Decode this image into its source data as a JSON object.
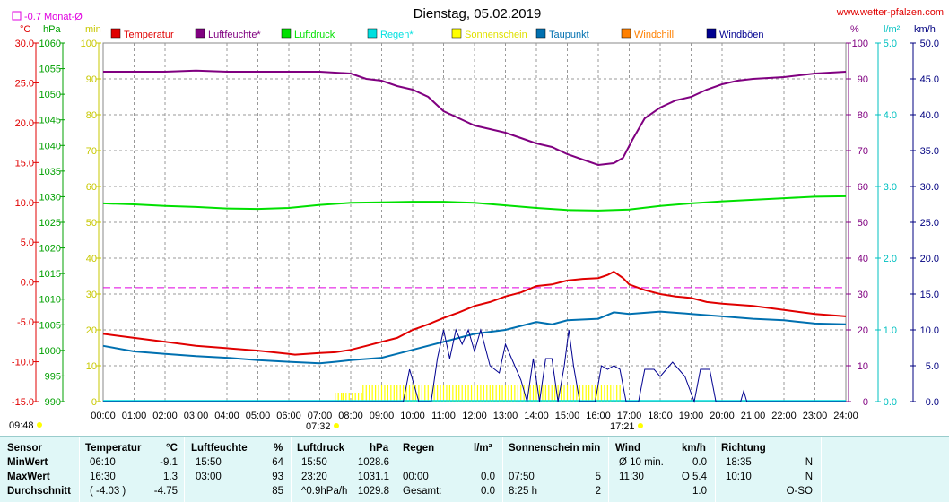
{
  "header": {
    "title": "Dienstag, 05.02.2019",
    "site": "www.wetter-pfalzen.com",
    "monthly_avg_label": "-0.7 Monat-Ø"
  },
  "axis_units": {
    "temp": "°C",
    "pressure": "hPa",
    "sunshine": "min",
    "humidity": "%",
    "rain": "l/m²",
    "wind": "km/h"
  },
  "legend": [
    {
      "label": "Temperatur",
      "color": "#e00000"
    },
    {
      "label": "Luftfeuchte*",
      "color": "#800080"
    },
    {
      "label": "Luftdruck",
      "color": "#00e000"
    },
    {
      "label": "Regen*",
      "color": "#00e0e0"
    },
    {
      "label": "Sonnenschein",
      "color": "#ffff00"
    },
    {
      "label": "Taupunkt",
      "color": "#0070b0"
    },
    {
      "label": "Windchill",
      "color": "#ff8000"
    },
    {
      "label": "Windböen",
      "color": "#000090"
    }
  ],
  "chart_data": {
    "type": "line",
    "x_ticks": [
      "00:00",
      "01:00",
      "02:00",
      "03:00",
      "04:00",
      "05:00",
      "06:00",
      "07:00",
      "08:00",
      "09:00",
      "10:00",
      "11:00",
      "12:00",
      "13:00",
      "14:00",
      "15:00",
      "16:00",
      "17:00",
      "18:00",
      "19:00",
      "20:00",
      "21:00",
      "22:00",
      "23:00",
      "24:00"
    ],
    "axes": {
      "temp": {
        "ticks": [
          "30.0",
          "25.0",
          "20.0",
          "15.0",
          "10.0",
          "5.0",
          "0.0",
          "-5.0",
          "-10.0",
          "-15.0"
        ],
        "range": [
          -15,
          30
        ],
        "color": "#e00000"
      },
      "pressure": {
        "ticks": [
          "1060",
          "1055",
          "1050",
          "1045",
          "1040",
          "1035",
          "1030",
          "1025",
          "1020",
          "1015",
          "1010",
          "1005",
          "1000",
          "995",
          "990"
        ],
        "range": [
          990,
          1060
        ],
        "color": "#00a000"
      },
      "sunshine": {
        "ticks": [
          "100",
          "90",
          "80",
          "70",
          "60",
          "50",
          "40",
          "30",
          "20",
          "10",
          "0"
        ],
        "range": [
          0,
          100
        ],
        "color": "#c8c800"
      },
      "humidity": {
        "ticks": [
          "100",
          "90",
          "80",
          "70",
          "60",
          "50",
          "40",
          "30",
          "20",
          "10",
          "0"
        ],
        "range": [
          0,
          100
        ],
        "color": "#800080"
      },
      "rain": {
        "ticks": [
          "5.0",
          "4.0",
          "3.0",
          "2.0",
          "1.0",
          "0.0"
        ],
        "range": [
          0,
          5
        ],
        "color": "#00c0c0"
      },
      "wind": {
        "ticks": [
          "50.0",
          "45.0",
          "40.0",
          "35.0",
          "30.0",
          "25.0",
          "20.0",
          "15.0",
          "10.0",
          "5.0",
          "0.0"
        ],
        "range": [
          0,
          50
        ],
        "color": "#000080"
      }
    },
    "monthly_avg_temp": -0.7,
    "sunrise": "07:32",
    "sunset": "17:21",
    "daylength": "09:48",
    "series": [
      {
        "name": "Luftfeuchte*",
        "axis": "humidity",
        "color": "#800080",
        "points": [
          [
            0,
            92
          ],
          [
            1,
            92
          ],
          [
            2,
            92
          ],
          [
            3,
            92.3
          ],
          [
            4,
            92
          ],
          [
            5,
            92
          ],
          [
            6,
            92
          ],
          [
            7,
            92
          ],
          [
            8,
            91.5
          ],
          [
            8.5,
            90
          ],
          [
            9,
            89.5
          ],
          [
            9.5,
            88
          ],
          [
            10,
            87
          ],
          [
            10.5,
            85
          ],
          [
            11,
            81
          ],
          [
            11.5,
            79
          ],
          [
            12,
            77
          ],
          [
            12.5,
            76
          ],
          [
            13,
            75
          ],
          [
            13.5,
            73.5
          ],
          [
            14,
            72
          ],
          [
            14.5,
            71
          ],
          [
            15,
            69
          ],
          [
            15.5,
            67.5
          ],
          [
            16,
            66
          ],
          [
            16.5,
            66.5
          ],
          [
            16.8,
            68
          ],
          [
            17.1,
            73
          ],
          [
            17.5,
            79
          ],
          [
            18,
            82
          ],
          [
            18.5,
            84
          ],
          [
            19,
            85
          ],
          [
            19.5,
            87
          ],
          [
            20,
            88.5
          ],
          [
            20.5,
            89.5
          ],
          [
            21,
            90
          ],
          [
            22,
            90.5
          ],
          [
            23,
            91.5
          ],
          [
            24,
            92
          ]
        ]
      },
      {
        "name": "Luftdruck",
        "axis": "pressure",
        "color": "#00e000",
        "points": [
          [
            0,
            1028.7
          ],
          [
            1,
            1028.5
          ],
          [
            2,
            1028.2
          ],
          [
            3,
            1028
          ],
          [
            4,
            1027.7
          ],
          [
            5,
            1027.6
          ],
          [
            6,
            1027.8
          ],
          [
            7,
            1028.4
          ],
          [
            8,
            1028.8
          ],
          [
            9,
            1028.9
          ],
          [
            10,
            1029
          ],
          [
            11,
            1029
          ],
          [
            12,
            1028.8
          ],
          [
            13,
            1028.3
          ],
          [
            14,
            1027.8
          ],
          [
            15,
            1027.4
          ],
          [
            16,
            1027.3
          ],
          [
            17,
            1027.5
          ],
          [
            18,
            1028.2
          ],
          [
            19,
            1028.7
          ],
          [
            20,
            1029.1
          ],
          [
            21,
            1029.4
          ],
          [
            22,
            1029.7
          ],
          [
            23,
            1030
          ],
          [
            24,
            1030.1
          ]
        ]
      },
      {
        "name": "Temperatur",
        "axis": "temp",
        "color": "#e00000",
        "points": [
          [
            0,
            -6.5
          ],
          [
            1,
            -7
          ],
          [
            2,
            -7.5
          ],
          [
            3,
            -8
          ],
          [
            4,
            -8.3
          ],
          [
            5,
            -8.6
          ],
          [
            6,
            -9
          ],
          [
            6.2,
            -9.1
          ],
          [
            7,
            -8.9
          ],
          [
            7.5,
            -8.8
          ],
          [
            8,
            -8.5
          ],
          [
            8.5,
            -8
          ],
          [
            9,
            -7.5
          ],
          [
            9.5,
            -7
          ],
          [
            10,
            -6
          ],
          [
            10.5,
            -5.3
          ],
          [
            11,
            -4.5
          ],
          [
            11.5,
            -3.8
          ],
          [
            12,
            -3
          ],
          [
            12.5,
            -2.5
          ],
          [
            13,
            -1.8
          ],
          [
            13.5,
            -1.3
          ],
          [
            14,
            -0.5
          ],
          [
            14.5,
            -0.3
          ],
          [
            15,
            0.2
          ],
          [
            15.5,
            0.4
          ],
          [
            16,
            0.5
          ],
          [
            16.3,
            0.9
          ],
          [
            16.5,
            1.3
          ],
          [
            16.8,
            0.5
          ],
          [
            17,
            -0.3
          ],
          [
            17.5,
            -1
          ],
          [
            18,
            -1.5
          ],
          [
            18.5,
            -1.8
          ],
          [
            19,
            -2
          ],
          [
            19.5,
            -2.5
          ],
          [
            20,
            -2.7
          ],
          [
            21,
            -3
          ],
          [
            22,
            -3.5
          ],
          [
            23,
            -4
          ],
          [
            24,
            -4.3
          ]
        ]
      },
      {
        "name": "Taupunkt",
        "axis": "temp",
        "color": "#0070b0",
        "points": [
          [
            0,
            -8
          ],
          [
            1,
            -8.7
          ],
          [
            2,
            -9
          ],
          [
            3,
            -9.3
          ],
          [
            4,
            -9.5
          ],
          [
            5,
            -9.8
          ],
          [
            6,
            -10
          ],
          [
            7,
            -10.2
          ],
          [
            7.5,
            -10
          ],
          [
            8,
            -9.8
          ],
          [
            9,
            -9.5
          ],
          [
            9.5,
            -9
          ],
          [
            10,
            -8.5
          ],
          [
            11,
            -7.5
          ],
          [
            12,
            -6.5
          ],
          [
            13,
            -6
          ],
          [
            14,
            -5
          ],
          [
            14.5,
            -5.3
          ],
          [
            15,
            -4.8
          ],
          [
            16,
            -4.6
          ],
          [
            16.5,
            -3.8
          ],
          [
            17,
            -4
          ],
          [
            18,
            -3.7
          ],
          [
            19,
            -4
          ],
          [
            20,
            -4.3
          ],
          [
            21,
            -4.6
          ],
          [
            22,
            -4.8
          ],
          [
            23,
            -5.2
          ],
          [
            24,
            -5.3
          ]
        ]
      },
      {
        "name": "Windböen",
        "axis": "wind",
        "color": "#000090",
        "points": [
          [
            0,
            0
          ],
          [
            9.7,
            0
          ],
          [
            9.9,
            4.5
          ],
          [
            10.2,
            0
          ],
          [
            10.6,
            0
          ],
          [
            10.8,
            6
          ],
          [
            11,
            10
          ],
          [
            11.2,
            6
          ],
          [
            11.4,
            10
          ],
          [
            11.6,
            8
          ],
          [
            11.8,
            10
          ],
          [
            12,
            7
          ],
          [
            12.2,
            10
          ],
          [
            12.5,
            5
          ],
          [
            12.8,
            4
          ],
          [
            13,
            8
          ],
          [
            13.2,
            6
          ],
          [
            13.5,
            3
          ],
          [
            13.7,
            0
          ],
          [
            13.9,
            6
          ],
          [
            14.1,
            0
          ],
          [
            14.3,
            6
          ],
          [
            14.5,
            6
          ],
          [
            14.7,
            0
          ],
          [
            14.9,
            5
          ],
          [
            15.05,
            10
          ],
          [
            15.2,
            5
          ],
          [
            15.4,
            0
          ],
          [
            15.9,
            0
          ],
          [
            16.1,
            5
          ],
          [
            16.3,
            4.5
          ],
          [
            16.5,
            5
          ],
          [
            16.7,
            4.5
          ],
          [
            16.9,
            0
          ],
          [
            17.3,
            0
          ],
          [
            17.5,
            4.5
          ],
          [
            17.8,
            4.5
          ],
          [
            18,
            3.5
          ],
          [
            18.2,
            4.5
          ],
          [
            18.4,
            5.5
          ],
          [
            18.6,
            4.5
          ],
          [
            18.8,
            3.5
          ],
          [
            19.1,
            0
          ],
          [
            19.3,
            4.5
          ],
          [
            19.6,
            4.5
          ],
          [
            19.8,
            0
          ],
          [
            20.6,
            0
          ],
          [
            20.7,
            1.5
          ],
          [
            20.8,
            0
          ],
          [
            24,
            0
          ]
        ]
      }
    ],
    "sunshine_bars": [
      [
        7.5,
        7.7,
        0.5
      ],
      [
        7.75,
        8.35,
        0.5
      ],
      [
        8.4,
        16.7,
        0.95
      ]
    ]
  },
  "table": {
    "headers": [
      "Sensor",
      "Temperatur",
      "°C",
      "Luftfeuchte",
      "%",
      "Luftdruck",
      "hPa",
      "Regen",
      "l/m²",
      "Sonnenschein min",
      "Wind",
      "km/h",
      "Richtung"
    ],
    "rows": [
      {
        "label": "MinWert",
        "t_time": "06:10",
        "t_val": "-9.1",
        "h_time": "15:50",
        "h_val": "64",
        "p_time": "15:50",
        "p_val": "1028.6",
        "r_time": "",
        "r_val": "",
        "s_time": "",
        "s_val": "",
        "w_time": "Ø 10 min.",
        "w_val": "0.0",
        "d_time": "18:35",
        "d_val": "N"
      },
      {
        "label": "MaxWert",
        "t_time": "16:30",
        "t_val": "1.3",
        "h_time": "03:00",
        "h_val": "93",
        "p_time": "23:20",
        "p_val": "1031.1",
        "r_time": "00:00",
        "r_val": "0.0",
        "s_time": "07:50",
        "s_val": "5",
        "w_time": "11:30",
        "w_val": "O 5.4",
        "d_time": "10:10",
        "d_val": "N"
      },
      {
        "label": "Durchschnitt",
        "t_time": "( -4.03 )",
        "t_val": "-4.75",
        "h_time": "",
        "h_val": "85",
        "p_time": "^0.9hPa/h",
        "p_val": "1029.8",
        "r_time": "Gesamt:",
        "r_val": "0.0",
        "s_time": "8:25 h",
        "s_val": "2",
        "w_time": "",
        "w_val": "1.0",
        "d_time": "",
        "d_val": "O-SO"
      }
    ]
  }
}
